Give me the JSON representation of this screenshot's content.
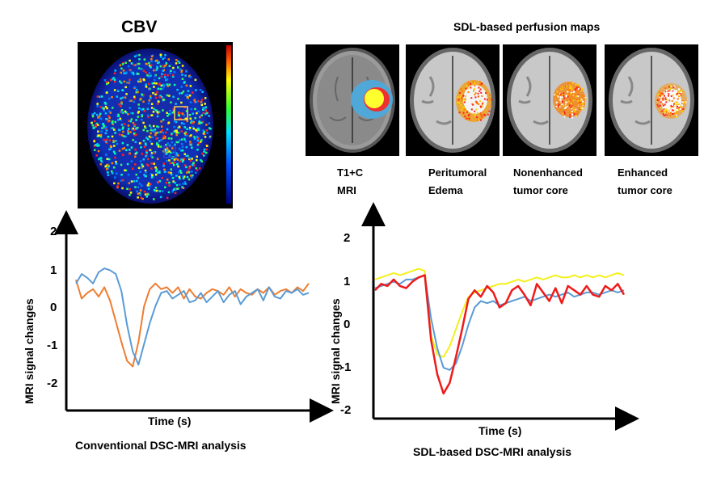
{
  "top": {
    "cbv_title": "CBV",
    "sdl_title": "SDL-based perfusion maps",
    "maps": [
      {
        "name": "t1c-mri",
        "line1": "T1+C",
        "line2": "MRI"
      },
      {
        "name": "peritumoral-edema",
        "line1": "Peritumoral",
        "line2": "Edema"
      },
      {
        "name": "nonenhanced-core",
        "line1": "Nonenhanced",
        "line2": "tumor core"
      },
      {
        "name": "enhanced-core",
        "line1": "Enhanced",
        "line2": "tumor core"
      }
    ]
  },
  "colors": {
    "orange": "#ee7d31",
    "blue": "#5b9bd5",
    "red": "#ee1b1b",
    "yellow": "#f4f01a",
    "roi_yellow": "#ffd24a",
    "roi_blue": "#3344cc"
  },
  "chart_data": [
    {
      "type": "line",
      "title": "Conventional DSC-MRI analysis",
      "xlabel": "Time (s)",
      "ylabel": "MRI signal changes",
      "ylim": [
        -2.5,
        2.5
      ],
      "yticks": [
        "2",
        "1",
        "0",
        "-1",
        "-2"
      ],
      "ytick_values": [
        2,
        1,
        0,
        -1,
        -2
      ],
      "grid": false,
      "series": [
        {
          "name": "orange-curve",
          "color": "#ee7d31",
          "values": [
            0.8,
            0.3,
            0.45,
            0.55,
            0.35,
            0.6,
            0.25,
            -0.3,
            -0.85,
            -1.35,
            -1.5,
            -0.85,
            0.1,
            0.55,
            0.7,
            0.55,
            0.6,
            0.45,
            0.6,
            0.3,
            0.55,
            0.35,
            0.3,
            0.45,
            0.55,
            0.5,
            0.4,
            0.6,
            0.35,
            0.55,
            0.45,
            0.4,
            0.55,
            0.45,
            0.6,
            0.4,
            0.5,
            0.55,
            0.45,
            0.6,
            0.5,
            0.7
          ]
        },
        {
          "name": "blue-curve",
          "color": "#5b9bd5",
          "values": [
            0.7,
            0.95,
            0.85,
            0.7,
            1.0,
            1.1,
            1.05,
            0.95,
            0.5,
            -0.4,
            -1.1,
            -1.45,
            -0.9,
            -0.35,
            0.1,
            0.45,
            0.5,
            0.3,
            0.4,
            0.5,
            0.2,
            0.25,
            0.45,
            0.2,
            0.35,
            0.5,
            0.2,
            0.4,
            0.5,
            0.15,
            0.35,
            0.45,
            0.55,
            0.25,
            0.6,
            0.35,
            0.3,
            0.5,
            0.45,
            0.55,
            0.4,
            0.45
          ]
        }
      ]
    },
    {
      "type": "line",
      "title": "SDL-based DSC-MRI analysis",
      "xlabel": "Time (s)",
      "ylabel": "MRI signal changes",
      "ylim": [
        -2.2,
        2.4
      ],
      "yticks": [
        "2",
        "1",
        "0",
        "-1",
        "-2"
      ],
      "ytick_values": [
        2,
        1,
        0,
        -1,
        -2
      ],
      "grid": false,
      "series": [
        {
          "name": "yellow-curve",
          "color": "#f4f01a",
          "values": [
            1.1,
            1.15,
            1.2,
            1.25,
            1.2,
            1.25,
            1.3,
            1.35,
            1.3,
            -0.2,
            -0.65,
            -0.7,
            -0.45,
            -0.05,
            0.35,
            0.7,
            0.8,
            0.85,
            0.9,
            0.95,
            1.0,
            1.0,
            1.05,
            1.1,
            1.05,
            1.1,
            1.15,
            1.1,
            1.15,
            1.2,
            1.15,
            1.15,
            1.2,
            1.15,
            1.2,
            1.15,
            1.2,
            1.15,
            1.2,
            1.25,
            1.2
          ]
        },
        {
          "name": "blue-curve",
          "color": "#5b9bd5",
          "values": [
            0.9,
            0.95,
            1.0,
            1.05,
            1.0,
            1.1,
            1.1,
            1.15,
            1.2,
            0.2,
            -0.5,
            -0.95,
            -1.0,
            -0.85,
            -0.45,
            0.05,
            0.45,
            0.6,
            0.55,
            0.6,
            0.5,
            0.55,
            0.6,
            0.65,
            0.7,
            0.6,
            0.65,
            0.7,
            0.75,
            0.7,
            0.75,
            0.8,
            0.7,
            0.75,
            0.8,
            0.8,
            0.75,
            0.8,
            0.85,
            0.8,
            0.85
          ]
        },
        {
          "name": "red-curve",
          "color": "#ee1b1b",
          "values": [
            0.85,
            1.0,
            0.95,
            1.1,
            0.95,
            0.9,
            1.05,
            1.15,
            1.2,
            -0.3,
            -1.1,
            -1.55,
            -1.3,
            -0.7,
            -0.05,
            0.65,
            0.85,
            0.7,
            0.95,
            0.8,
            0.45,
            0.55,
            0.85,
            0.95,
            0.75,
            0.5,
            1.0,
            0.8,
            0.6,
            0.9,
            0.55,
            0.95,
            0.85,
            0.75,
            0.95,
            0.75,
            0.7,
            0.95,
            0.85,
            1.0,
            0.75
          ]
        }
      ]
    }
  ]
}
